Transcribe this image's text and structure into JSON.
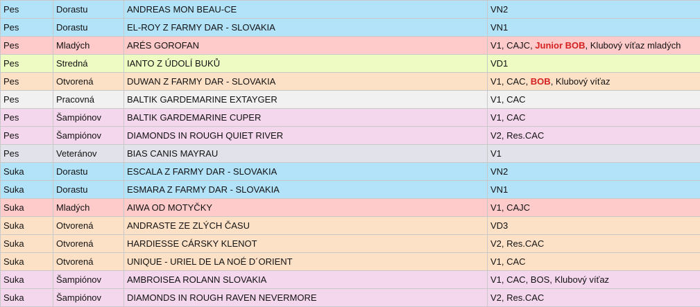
{
  "table": {
    "rows": [
      {
        "sex": "Pes",
        "class": "Dorastu",
        "dog": "ANDREAS MON BEAU-CE",
        "award": [
          "VN2"
        ],
        "color": "#b3e3f9"
      },
      {
        "sex": "Pes",
        "class": "Dorastu",
        "dog": "EL-ROY Z FARMY DAR - SLOVAKIA",
        "award": [
          "VN1"
        ],
        "color": "#b3e3f9"
      },
      {
        "sex": "Pes",
        "class": "Mladých",
        "dog": "ARÉS GOROFAN",
        "award": [
          "V1, CAJC, ",
          {
            "text": "Junior BOB",
            "color": "#d42020"
          },
          ", Klubový víťaz mladých"
        ],
        "color": "#ffcaca"
      },
      {
        "sex": "Pes",
        "class": "Stredná",
        "dog": "IANTO Z ÚDOLÍ BUKŮ",
        "award": [
          "VD1"
        ],
        "color": "#eefcc4"
      },
      {
        "sex": "Pes",
        "class": "Otvorená",
        "dog": "DUWAN Z FARMY DAR - SLOVAKIA",
        "award": [
          "V1, CAC, ",
          {
            "text": "BOB",
            "color": "#d42020"
          },
          ", Klubový víťaz"
        ],
        "color": "#fde1c6"
      },
      {
        "sex": "Pes",
        "class": "Pracovná",
        "dog": "BALTIK GARDEMARINE EXTAYGER",
        "award": [
          "V1, CAC"
        ],
        "color": "#f1f1f1"
      },
      {
        "sex": "Pes",
        "class": "Šampiónov",
        "dog": "BALTIK GARDEMARINE CUPER",
        "award": [
          "V1, CAC"
        ],
        "color": "#f4d7ec"
      },
      {
        "sex": "Pes",
        "class": "Šampiónov",
        "dog": "DIAMONDS IN ROUGH QUIET RIVER",
        "award": [
          "V2, Res.CAC"
        ],
        "color": "#f4d7ec"
      },
      {
        "sex": "Pes",
        "class": "Veteránov",
        "dog": "BIAS CANIS MAYRAU",
        "award": [
          "V1"
        ],
        "color": "#e2e2ea"
      },
      {
        "sex": "Suka",
        "class": "Dorastu",
        "dog": "ESCALA Z FARMY DAR - SLOVAKIA",
        "award": [
          "VN2"
        ],
        "color": "#b3e3f9"
      },
      {
        "sex": "Suka",
        "class": "Dorastu",
        "dog": "ESMARA Z FARMY DAR - SLOVAKIA",
        "award": [
          "VN1"
        ],
        "color": "#b3e3f9"
      },
      {
        "sex": "Suka",
        "class": "Mladých",
        "dog": "AIWA OD MOTYČKY",
        "award": [
          "V1, CAJC"
        ],
        "color": "#ffcaca"
      },
      {
        "sex": "Suka",
        "class": "Otvorená",
        "dog": "ANDRASTE ZE ZLÝCH ČASU",
        "award": [
          "VD3"
        ],
        "color": "#fde1c6"
      },
      {
        "sex": "Suka",
        "class": "Otvorená",
        "dog": "HARDIESSE CÁRSKY KLENOT",
        "award": [
          "V2, Res.CAC"
        ],
        "color": "#fde1c6"
      },
      {
        "sex": "Suka",
        "class": "Otvorená",
        "dog": "UNIQUE - URIEL DE LA NOÉ D´ORIENT",
        "award": [
          "V1, CAC"
        ],
        "color": "#fde1c6"
      },
      {
        "sex": "Suka",
        "class": "Šampiónov",
        "dog": "AMBROISEA ROLANN SLOVAKIA",
        "award": [
          "V1, CAC, BOS, Klubový víťaz"
        ],
        "color": "#f4d7ec"
      },
      {
        "sex": "Suka",
        "class": "Šampiónov",
        "dog": "DIAMONDS IN ROUGH RAVEN NEVERMORE",
        "award": [
          "V2, Res.CAC"
        ],
        "color": "#f4d7ec"
      }
    ]
  }
}
